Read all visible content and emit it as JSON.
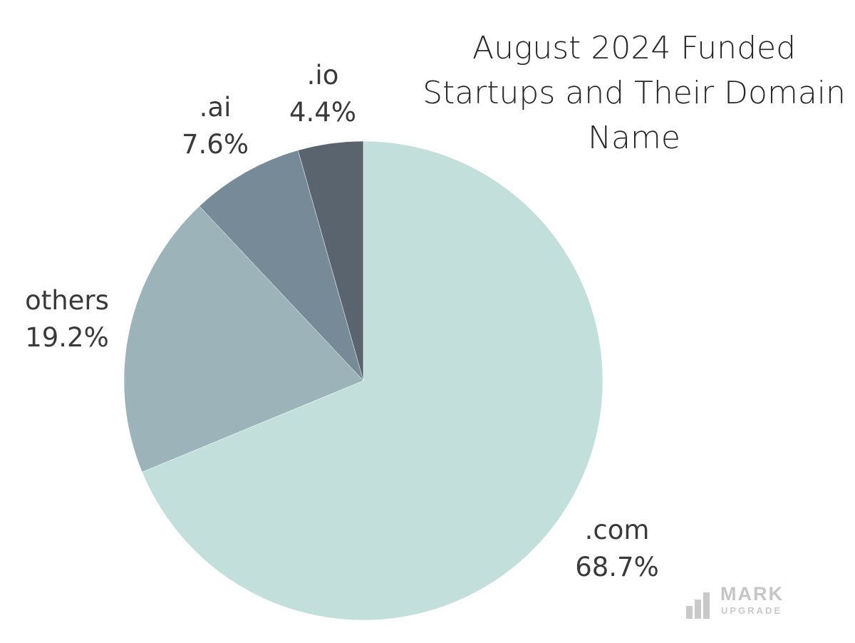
{
  "chart_data": {
    "type": "pie",
    "title_lines": [
      "August 2024 Funded",
      "Startups and Their Domain",
      "Name"
    ],
    "slices": [
      {
        "label": ".com",
        "percent_label": "68.7%",
        "value": 68.7,
        "color": "#c3dfdb"
      },
      {
        "label": "others",
        "percent_label": "19.2%",
        "value": 19.2,
        "color": "#9bb3b9"
      },
      {
        "label": ".ai",
        "percent_label": "7.6%",
        "value": 7.6,
        "color": "#768b97"
      },
      {
        "label": ".io",
        "percent_label": "4.4%",
        "value": 4.4,
        "color": "#59646f"
      }
    ],
    "start_direction": "12 o'clock",
    "direction": "clockwise",
    "legend": "none"
  },
  "watermark": {
    "brand": "MARK",
    "sub": "UPGRADE",
    "color": "#c6c6c6"
  }
}
